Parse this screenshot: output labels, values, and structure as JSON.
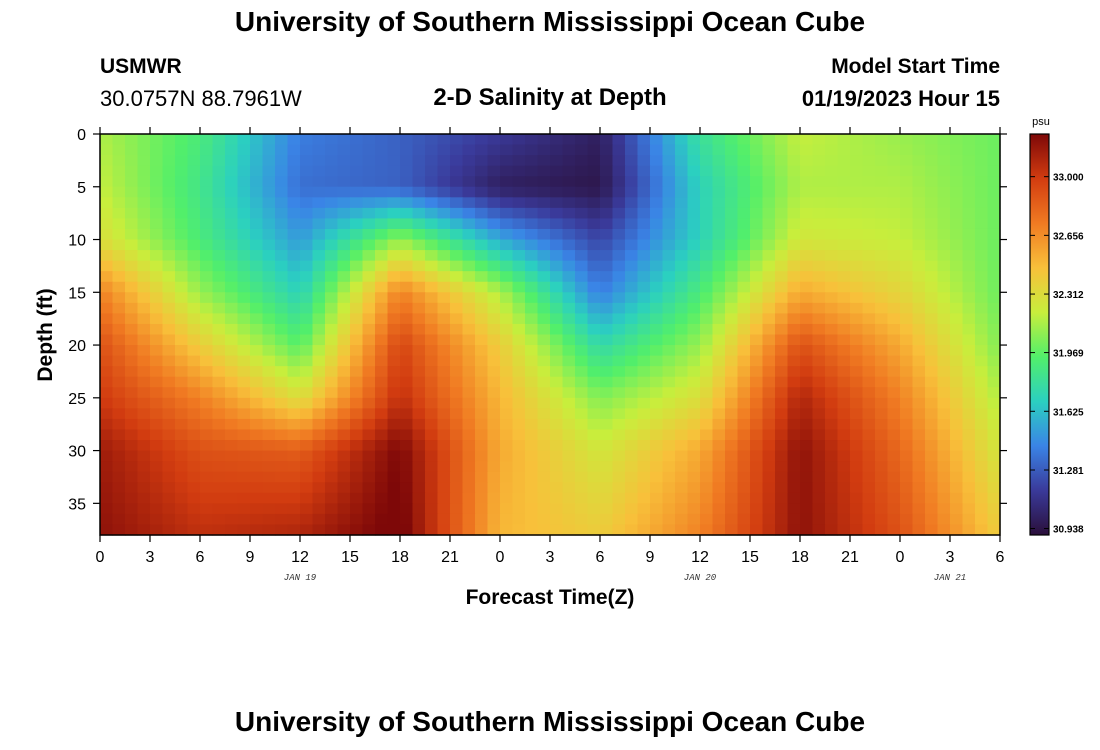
{
  "header": {
    "title": "University of Southern Mississippi Ocean Cube",
    "station_name": "USMWR",
    "station_coords": "30.0757N  88.7961W",
    "subtitle": "2-D Salinity at Depth",
    "model_start_label": "Model Start Time",
    "model_start_value": "01/19/2023 Hour 15"
  },
  "footer": {
    "title": "University of Southern Mississippi Ocean Cube"
  },
  "chart_data": {
    "type": "heatmap",
    "title": "2-D Salinity at Depth",
    "xlabel": "Forecast Time(Z)",
    "ylabel": "Depth (ft)",
    "x_tick_labels": [
      "0",
      "3",
      "6",
      "9",
      "12",
      "15",
      "18",
      "21",
      "0",
      "3",
      "6",
      "9",
      "12",
      "15",
      "18",
      "21",
      "0",
      "3",
      "6"
    ],
    "date_labels": [
      {
        "label": "JAN 19",
        "tick_index": 4
      },
      {
        "label": "JAN 20",
        "tick_index": 12
      },
      {
        "label": "JAN 21",
        "tick_index": 17
      }
    ],
    "y_ticks": [
      0,
      5,
      10,
      15,
      20,
      25,
      30,
      35
    ],
    "ylim": [
      0,
      38
    ],
    "x_hours": [
      0,
      6,
      12,
      18,
      24,
      30,
      36,
      42,
      48,
      54
    ],
    "depth_ft": [
      0,
      5,
      10,
      15,
      20,
      25,
      30,
      38
    ],
    "salinity_psu": [
      [
        32.15,
        31.9,
        31.4,
        31.3,
        31.15,
        31.0,
        31.8,
        32.2,
        32.1,
        32.0
      ],
      [
        32.2,
        31.85,
        31.35,
        31.3,
        31.0,
        30.95,
        31.7,
        32.15,
        32.15,
        32.0
      ],
      [
        32.3,
        31.9,
        31.5,
        32.1,
        31.55,
        31.2,
        31.7,
        32.25,
        32.2,
        32.0
      ],
      [
        32.7,
        32.1,
        31.7,
        32.7,
        32.15,
        31.4,
        31.9,
        32.55,
        32.35,
        32.0
      ],
      [
        32.9,
        32.4,
        31.95,
        32.95,
        32.4,
        31.75,
        32.1,
        32.9,
        32.55,
        32.05
      ],
      [
        33.0,
        32.7,
        32.3,
        33.05,
        32.5,
        32.05,
        32.3,
        33.1,
        32.7,
        32.15
      ],
      [
        33.15,
        32.9,
        32.85,
        33.25,
        32.55,
        32.25,
        32.55,
        33.2,
        32.8,
        32.25
      ],
      [
        33.2,
        33.05,
        33.1,
        33.3,
        32.5,
        32.4,
        32.7,
        33.2,
        32.9,
        32.4
      ]
    ],
    "colorbar": {
      "unit": "psu",
      "min": 30.9,
      "max": 33.25,
      "tick_labels": [
        "33.000",
        "32.656",
        "32.312",
        "31.969",
        "31.625",
        "31.281",
        "30.938"
      ],
      "tick_values": [
        33.0,
        32.656,
        32.312,
        31.969,
        31.625,
        31.281,
        30.938
      ],
      "colors": [
        "#2a0f3a",
        "#3a3a9a",
        "#3a84e6",
        "#2bd0c0",
        "#52ef6a",
        "#c8ee3c",
        "#f8c03a",
        "#f07a22",
        "#d23c10",
        "#7e0808"
      ]
    }
  }
}
